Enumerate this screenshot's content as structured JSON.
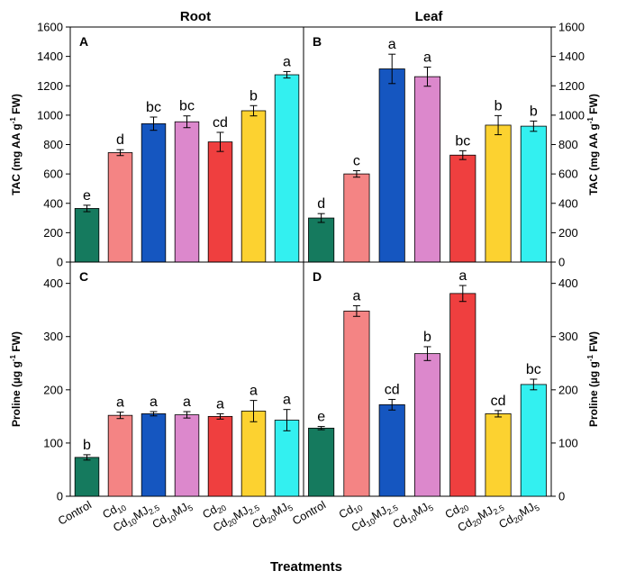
{
  "figure": {
    "column_titles": [
      "Root",
      "Leaf"
    ],
    "x_axis_title": "Treatments",
    "palette": [
      "#157a5e",
      "#f48484",
      "#1556c0",
      "#dc88cc",
      "#ef3f3f",
      "#fcd230",
      "#33f0f0"
    ]
  },
  "chart_data": [
    {
      "type": "bar",
      "panel": "A",
      "column": "Root",
      "ylabel": "TAC (mg AA g-1 FW)",
      "ylim": [
        0,
        1600
      ],
      "yticks": [
        0,
        200,
        400,
        600,
        800,
        1000,
        1200,
        1400,
        1600
      ],
      "y_axis_side": "left",
      "categories": [
        "Control",
        "Cd10",
        "Cd10MJ2.5",
        "Cd10MJ5",
        "Cd20",
        "Cd20MJ2.5",
        "Cd20MJ5"
      ],
      "values": [
        365,
        745,
        942,
        955,
        818,
        1030,
        1275
      ],
      "errors": [
        22,
        20,
        45,
        40,
        65,
        35,
        22
      ],
      "labels": [
        "e",
        "d",
        "bc",
        "bc",
        "cd",
        "b",
        "a"
      ]
    },
    {
      "type": "bar",
      "panel": "B",
      "column": "Leaf",
      "ylabel": "TAC (mg AA g-1 FW)",
      "ylim": [
        0,
        1600
      ],
      "yticks": [
        0,
        200,
        400,
        600,
        800,
        1000,
        1200,
        1400,
        1600
      ],
      "y_axis_side": "right",
      "categories": [
        "Control",
        "Cd10",
        "Cd10MJ2.5",
        "Cd10MJ5",
        "Cd20",
        "Cd20MJ2.5",
        "Cd20MJ5"
      ],
      "values": [
        300,
        600,
        1315,
        1262,
        728,
        932,
        925
      ],
      "errors": [
        30,
        22,
        100,
        65,
        30,
        65,
        35
      ],
      "labels": [
        "d",
        "c",
        "a",
        "a",
        "bc",
        "b",
        "b"
      ]
    },
    {
      "type": "bar",
      "panel": "C",
      "column": "Root",
      "ylabel": "Proline (µg g-1 FW)",
      "ylim": [
        0,
        440
      ],
      "yticks": [
        0,
        100,
        200,
        300,
        400
      ],
      "y_axis_side": "left",
      "categories": [
        "Control",
        "Cd10",
        "Cd10MJ2.5",
        "Cd10MJ5",
        "Cd20",
        "Cd20MJ2.5",
        "Cd20MJ5"
      ],
      "values": [
        73,
        152,
        155,
        153,
        150,
        160,
        143
      ],
      "errors": [
        5,
        6,
        4,
        6,
        5,
        20,
        20
      ],
      "labels": [
        "b",
        "a",
        "a",
        "a",
        "a",
        "a",
        "a"
      ]
    },
    {
      "type": "bar",
      "panel": "D",
      "column": "Leaf",
      "ylabel": "Proline (µg g-1 FW)",
      "ylim": [
        0,
        440
      ],
      "yticks": [
        0,
        100,
        200,
        300,
        400
      ],
      "y_axis_side": "right",
      "categories": [
        "Control",
        "Cd10",
        "Cd10MJ2.5",
        "Cd10MJ5",
        "Cd20",
        "Cd20MJ2.5",
        "Cd20MJ5"
      ],
      "values": [
        128,
        348,
        172,
        268,
        381,
        155,
        210
      ],
      "errors": [
        3,
        10,
        10,
        13,
        15,
        6,
        10
      ],
      "labels": [
        "e",
        "a",
        "cd",
        "b",
        "a",
        "cd",
        "bc"
      ]
    }
  ]
}
